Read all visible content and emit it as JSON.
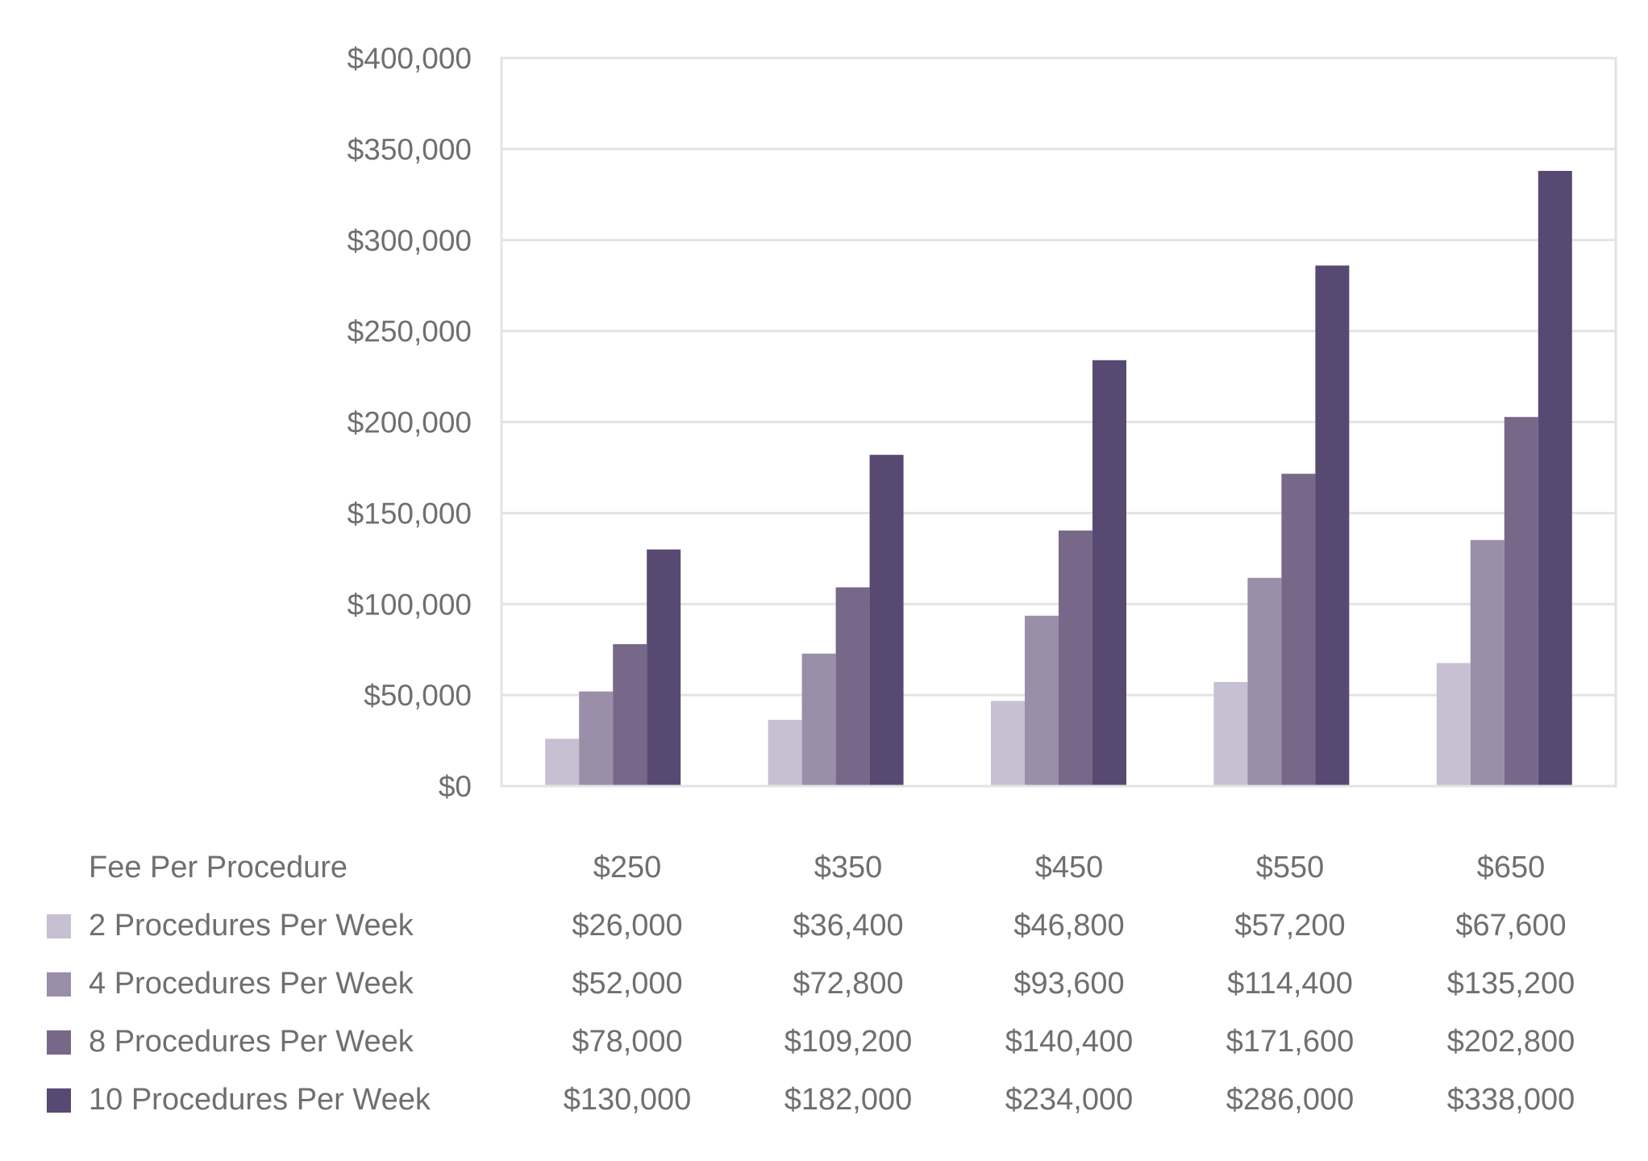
{
  "chart_data": {
    "type": "bar",
    "categories": [
      "$250",
      "$350",
      "$450",
      "$550",
      "$650"
    ],
    "series": [
      {
        "name": "2 Procedures Per Week",
        "color": "#c7c0d3",
        "values": [
          26000,
          36400,
          46800,
          57200,
          67600
        ],
        "labels": [
          "$26,000",
          "$36,400",
          "$46,800",
          "$57,200",
          "$67,600"
        ]
      },
      {
        "name": "4 Procedures Per Week",
        "color": "#9b8ea9",
        "values": [
          52000,
          72800,
          93600,
          114400,
          135200
        ],
        "labels": [
          "$52,000",
          "$72,800",
          "$93,600",
          "$114,400",
          "$135,200"
        ]
      },
      {
        "name": "8 Procedures Per Week",
        "color": "#77688a",
        "values": [
          78000,
          109200,
          140400,
          171600,
          202800
        ],
        "labels": [
          "$78,000",
          "$109,200",
          "$140,400",
          "$171,600",
          "$202,800"
        ]
      },
      {
        "name": "10 Procedures Per Week",
        "color": "#584973",
        "values": [
          130000,
          182000,
          234000,
          286000,
          338000
        ],
        "labels": [
          "$130,000",
          "$182,000",
          "$234,000",
          "$286,000",
          "$338,000"
        ]
      }
    ],
    "yticks": [
      0,
      50000,
      100000,
      150000,
      200000,
      250000,
      300000,
      350000,
      400000
    ],
    "ytick_labels": [
      "$0",
      "$50,000",
      "$100,000",
      "$150,000",
      "$200,000",
      "$250,000",
      "$300,000",
      "$350,000",
      "$400,000"
    ],
    "ylim": [
      0,
      400000
    ],
    "xlabel": "Fee Per Procedure",
    "ylabel": "",
    "title": "",
    "grid": true,
    "legend": "data-table-below"
  }
}
